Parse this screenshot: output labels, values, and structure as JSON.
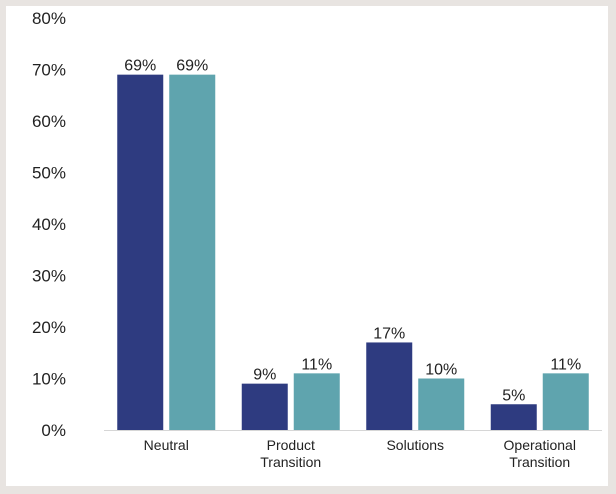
{
  "chart_data": {
    "type": "bar",
    "categories": [
      "Neutral",
      "Product\nTransition",
      "Solutions",
      "Operational\nTransition"
    ],
    "series": [
      {
        "values": [
          69,
          9,
          17,
          5
        ],
        "labels": [
          "69%",
          "9%",
          "17%",
          "5%"
        ]
      },
      {
        "values": [
          69,
          11,
          10,
          11
        ],
        "labels": [
          "69%",
          "11%",
          "10%",
          "11%"
        ]
      }
    ],
    "colors": [
      "#2e3b80",
      "#5fa4ae"
    ],
    "ylim": [
      0,
      80
    ],
    "yticks": [
      "0%",
      "10%",
      "20%",
      "30%",
      "40%",
      "50%",
      "60%",
      "70%",
      "80%"
    ],
    "grid": false,
    "legend": "none"
  }
}
